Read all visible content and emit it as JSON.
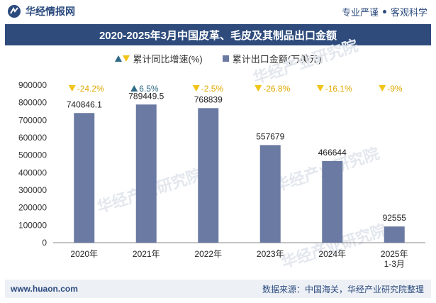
{
  "header": {
    "brand": "华经情报网",
    "tagline_left": "专业严谨",
    "tagline_right": "客观科学"
  },
  "footer": {
    "url": "www.huaon.com",
    "source": "数据来源：中国海关，华经产业研究院整理"
  },
  "watermark": "华经产业研究院",
  "colors": {
    "bar": "#6b7aa3",
    "title_bg": "#2e4b7c",
    "up_marker": "#2f6b88",
    "down_marker": "#f0c419"
  },
  "chart_data": {
    "type": "bar",
    "title": "2020-2025年3月中国皮革、毛皮及其制品出口金额",
    "categories": [
      "2020年",
      "2021年",
      "2022年",
      "2023年",
      "2024年",
      "2025年\n1-3月"
    ],
    "series": [
      {
        "name": "累计出口金额(万美元)",
        "values": [
          740846.1,
          789449.5,
          768839,
          557679,
          466644,
          92555
        ],
        "labels": [
          "740846.1",
          "789449.5",
          "768839",
          "557679",
          "466644",
          "92555"
        ]
      },
      {
        "name": "累计同比增速(%)",
        "values": [
          -24.2,
          6.5,
          -2.5,
          -26.8,
          -16.1,
          -9
        ],
        "labels": [
          "-24.2%",
          "6.5%",
          "-2.5%",
          "-26.8%",
          "-16.1%",
          "-9%"
        ]
      }
    ],
    "y_ticks": [
      "0",
      "100000",
      "200000",
      "300000",
      "400000",
      "500000",
      "600000",
      "700000",
      "800000",
      "900000"
    ],
    "ylim": [
      0,
      900000
    ],
    "grid": false,
    "legend_position": "top-center"
  }
}
